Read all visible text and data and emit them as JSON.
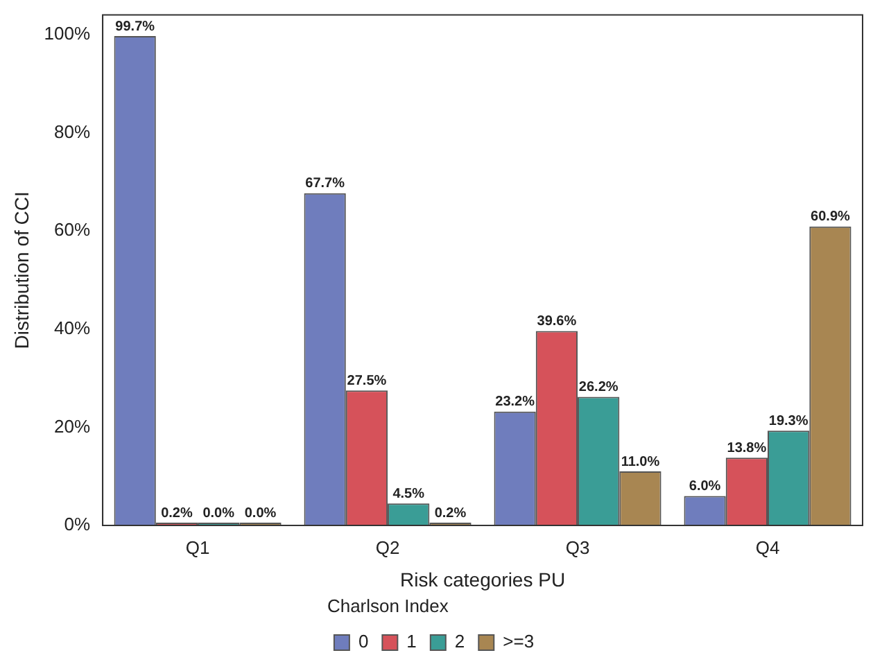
{
  "chart_data": {
    "type": "bar",
    "xlabel": "Risk categories PU",
    "ylabel": "Distribution of CCI",
    "legend_title": "Charlson Index",
    "legend": "bottom",
    "grid": false,
    "categories": [
      "Q1",
      "Q2",
      "Q3",
      "Q4"
    ],
    "ylim": [
      0,
      104
    ],
    "yticks": [
      {
        "value": 0,
        "label": "0%"
      },
      {
        "value": 20,
        "label": "20%"
      },
      {
        "value": 40,
        "label": "40%"
      },
      {
        "value": 60,
        "label": "60%"
      },
      {
        "value": 80,
        "label": "80%"
      },
      {
        "value": 100,
        "label": "100%"
      }
    ],
    "series": [
      {
        "name": "0",
        "color": "#6f7dbd",
        "values": [
          99.7,
          67.7,
          23.2,
          6.0
        ],
        "value_labels": [
          "99.7%",
          "67.7%",
          "23.2%",
          "6.0%"
        ]
      },
      {
        "name": "1",
        "color": "#d6525a",
        "values": [
          0.2,
          27.5,
          39.6,
          13.8
        ],
        "value_labels": [
          "0.2%",
          "27.5%",
          "39.6%",
          "13.8%"
        ]
      },
      {
        "name": "2",
        "color": "#3a9d96",
        "values": [
          0.0,
          4.5,
          26.2,
          19.3
        ],
        "value_labels": [
          "0.0%",
          "4.5%",
          "26.2%",
          "19.3%"
        ]
      },
      {
        "name": ">=3",
        "color": "#a88652",
        "values": [
          0.0,
          0.2,
          11.0,
          60.9
        ],
        "value_labels": [
          "0.0%",
          "0.2%",
          "11.0%",
          "60.9%"
        ]
      }
    ]
  }
}
